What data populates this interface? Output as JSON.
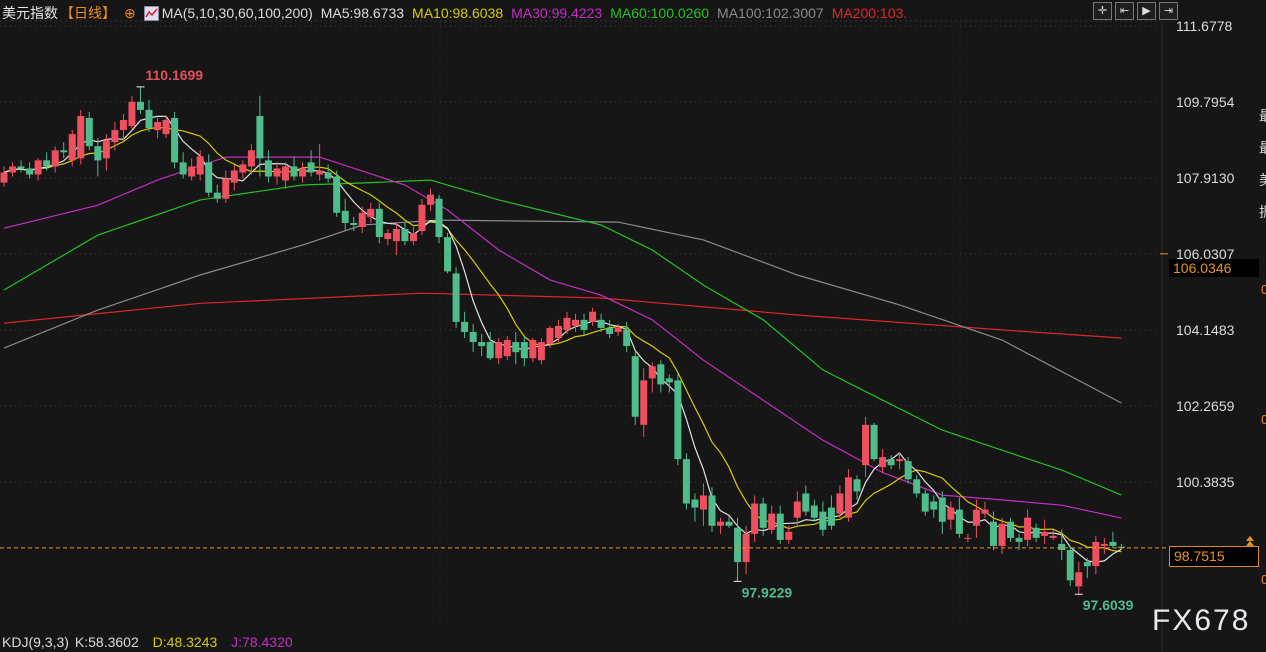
{
  "header": {
    "title": "美元指数",
    "period": "【日线】",
    "period_icon": "crosshair-circle-icon",
    "ma_icon": "chart-indicator-icon",
    "ma_params": "MA(5,10,30,60,100,200)",
    "ma5": "MA5:98.6733",
    "ma10": "MA10:98.6038",
    "ma30": "MA30:99.4223",
    "ma60": "MA60:100.0260",
    "ma100": "MA100:102.3007",
    "ma200": "MA200:103."
  },
  "toolbar": [
    {
      "icon": "crosshair-icon",
      "glyph": "✛"
    },
    {
      "icon": "fit-range-icon",
      "glyph": "⇤"
    },
    {
      "icon": "play-forward-icon",
      "glyph": "▶"
    },
    {
      "icon": "exit-icon",
      "glyph": "⇥"
    }
  ],
  "kdj": {
    "params": "KDJ(9,3,3)",
    "k": "K:58.3602",
    "d": "D:48.3243",
    "j": "J:78.4320"
  },
  "side_panel": {
    "chars": [
      "最",
      "最",
      "美",
      "振"
    ],
    "zeros": [
      "0",
      "0",
      "0"
    ]
  },
  "watermark": "FX678",
  "colors": {
    "background": "#161616",
    "up": "#ef4f5f",
    "down": "#4fbc8c",
    "ma5": "#e0e0e0",
    "ma10": "#d6cc00",
    "ma30": "#c62cc6",
    "ma60": "#22c322",
    "ma100": "#8a8a8a",
    "ma200": "#e02626",
    "current_price": "#e8961e"
  },
  "chart_data": {
    "type": "candlestick",
    "title": "美元指数",
    "yaxis_ticks": [
      "111.6778",
      "109.7954",
      "107.9130",
      "106.0307",
      "104.1483",
      "102.2659",
      "100.3835"
    ],
    "ylim": [
      96.9,
      111.6778
    ],
    "grid": true,
    "current_price": 98.7515,
    "current_price_label": "98.7515",
    "highlight_price_label": "106.0346",
    "highlight_price": 106.0346,
    "annotations": [
      {
        "text": "110.1699",
        "candle": 16,
        "price": 110.1699,
        "kind": "high"
      },
      {
        "text": "97.9229",
        "candle": 86,
        "price": 97.9229,
        "kind": "low"
      },
      {
        "text": "97.6039",
        "candle": 126,
        "price": 97.6039,
        "kind": "low"
      }
    ],
    "candles_ohlc": [
      [
        107.8,
        108.2,
        107.7,
        108.05
      ],
      [
        108.05,
        108.3,
        107.95,
        108.2
      ],
      [
        108.2,
        108.35,
        108.05,
        108.15
      ],
      [
        108.15,
        108.3,
        107.9,
        108.0
      ],
      [
        108.0,
        108.4,
        107.85,
        108.35
      ],
      [
        108.35,
        108.55,
        108.1,
        108.2
      ],
      [
        108.2,
        108.7,
        108.05,
        108.6
      ],
      [
        108.6,
        108.8,
        108.4,
        108.55
      ],
      [
        108.35,
        109.1,
        108.2,
        109.0
      ],
      [
        108.4,
        109.6,
        108.25,
        109.45
      ],
      [
        109.4,
        109.55,
        108.6,
        108.7
      ],
      [
        108.7,
        108.9,
        107.95,
        108.35
      ],
      [
        108.4,
        109.0,
        108.1,
        108.85
      ],
      [
        108.8,
        109.3,
        108.6,
        109.1
      ],
      [
        109.1,
        109.5,
        108.8,
        109.35
      ],
      [
        109.2,
        109.95,
        109.1,
        109.8
      ],
      [
        109.8,
        110.17,
        109.5,
        109.6
      ],
      [
        109.6,
        109.85,
        109.05,
        109.15
      ],
      [
        109.1,
        109.4,
        108.9,
        109.3
      ],
      [
        109.0,
        109.45,
        108.9,
        109.35
      ],
      [
        109.4,
        109.55,
        108.15,
        108.3
      ],
      [
        108.3,
        108.55,
        107.9,
        108.0
      ],
      [
        107.95,
        108.4,
        107.85,
        108.2
      ],
      [
        108.0,
        108.6,
        107.85,
        108.45
      ],
      [
        108.3,
        108.5,
        107.45,
        107.55
      ],
      [
        107.55,
        107.75,
        107.3,
        107.4
      ],
      [
        107.4,
        108.1,
        107.3,
        107.9
      ],
      [
        107.8,
        108.25,
        107.6,
        108.1
      ],
      [
        108.05,
        108.35,
        107.9,
        108.25
      ],
      [
        108.2,
        108.75,
        108.0,
        108.6
      ],
      [
        109.45,
        109.95,
        107.95,
        108.4
      ],
      [
        108.35,
        108.6,
        107.8,
        107.95
      ],
      [
        107.95,
        108.3,
        107.75,
        108.15
      ],
      [
        107.85,
        108.3,
        107.65,
        108.2
      ],
      [
        108.2,
        108.45,
        107.85,
        107.95
      ],
      [
        107.95,
        108.3,
        107.8,
        108.15
      ],
      [
        108.3,
        108.6,
        107.95,
        108.05
      ],
      [
        108.0,
        108.75,
        107.85,
        108.1
      ],
      [
        108.05,
        108.25,
        107.8,
        107.9
      ],
      [
        107.95,
        108.1,
        106.95,
        107.05
      ],
      [
        107.1,
        107.4,
        106.6,
        106.8
      ],
      [
        106.8,
        106.95,
        106.6,
        106.75
      ],
      [
        106.7,
        107.2,
        106.55,
        107.05
      ],
      [
        106.95,
        107.3,
        106.8,
        107.15
      ],
      [
        107.15,
        107.3,
        106.3,
        106.45
      ],
      [
        106.4,
        106.65,
        106.25,
        106.55
      ],
      [
        106.35,
        106.8,
        106.0,
        106.65
      ],
      [
        106.65,
        106.8,
        106.25,
        106.35
      ],
      [
        106.35,
        106.7,
        106.25,
        106.55
      ],
      [
        106.6,
        107.4,
        106.5,
        107.25
      ],
      [
        107.25,
        107.65,
        107.1,
        107.5
      ],
      [
        107.4,
        107.5,
        106.3,
        106.45
      ],
      [
        106.45,
        106.55,
        105.55,
        105.6
      ],
      [
        105.55,
        105.7,
        104.2,
        104.35
      ],
      [
        104.35,
        104.6,
        103.95,
        104.1
      ],
      [
        104.1,
        104.3,
        103.6,
        103.85
      ],
      [
        103.85,
        104.05,
        103.5,
        103.75
      ],
      [
        103.85,
        104.1,
        103.4,
        103.45
      ],
      [
        103.45,
        103.95,
        103.3,
        103.85
      ],
      [
        103.5,
        104.0,
        103.4,
        103.9
      ],
      [
        103.85,
        104.1,
        103.3,
        103.6
      ],
      [
        103.85,
        104.0,
        103.25,
        103.45
      ],
      [
        103.45,
        103.95,
        103.35,
        103.9
      ],
      [
        103.4,
        103.95,
        103.3,
        103.85
      ],
      [
        103.8,
        104.25,
        103.7,
        104.2
      ],
      [
        103.95,
        104.4,
        103.85,
        104.25
      ],
      [
        104.15,
        104.6,
        104.05,
        104.45
      ],
      [
        104.25,
        104.55,
        104.1,
        104.4
      ],
      [
        104.4,
        104.55,
        104.0,
        104.15
      ],
      [
        104.35,
        104.7,
        104.25,
        104.6
      ],
      [
        104.4,
        104.55,
        104.1,
        104.2
      ],
      [
        104.2,
        104.4,
        103.95,
        104.05
      ],
      [
        104.1,
        104.3,
        104.0,
        104.2
      ],
      [
        104.15,
        104.35,
        103.6,
        103.75
      ],
      [
        103.5,
        103.6,
        101.8,
        102.0
      ],
      [
        101.8,
        103.2,
        101.5,
        102.9
      ],
      [
        102.95,
        103.35,
        102.6,
        103.25
      ],
      [
        103.3,
        103.4,
        102.6,
        102.8
      ],
      [
        102.95,
        103.05,
        102.6,
        102.85
      ],
      [
        102.9,
        103.1,
        100.8,
        100.95
      ],
      [
        100.95,
        101.1,
        99.7,
        99.85
      ],
      [
        99.95,
        100.1,
        99.4,
        99.75
      ],
      [
        99.7,
        100.35,
        99.3,
        100.05
      ],
      [
        100.05,
        100.25,
        99.15,
        99.3
      ],
      [
        99.3,
        99.5,
        99.1,
        99.4
      ],
      [
        99.4,
        99.55,
        99.25,
        99.3
      ],
      [
        99.25,
        99.5,
        97.92,
        98.4
      ],
      [
        98.4,
        99.3,
        98.1,
        99.1
      ],
      [
        99.1,
        100.05,
        98.9,
        99.85
      ],
      [
        99.85,
        100.0,
        99.05,
        99.25
      ],
      [
        99.2,
        99.8,
        99.1,
        99.6
      ],
      [
        99.6,
        99.8,
        98.85,
        98.95
      ],
      [
        98.95,
        99.3,
        98.85,
        99.15
      ],
      [
        99.5,
        100.15,
        99.3,
        99.9
      ],
      [
        100.1,
        100.3,
        99.55,
        99.65
      ],
      [
        99.8,
        99.95,
        99.4,
        99.5
      ],
      [
        99.65,
        99.9,
        99.05,
        99.2
      ],
      [
        99.75,
        100.05,
        99.2,
        99.3
      ],
      [
        99.6,
        100.3,
        99.5,
        100.1
      ],
      [
        99.5,
        100.7,
        99.4,
        100.5
      ],
      [
        100.45,
        100.55,
        99.95,
        100.15
      ],
      [
        100.8,
        102.0,
        100.5,
        101.8
      ],
      [
        101.8,
        101.85,
        100.9,
        100.95
      ],
      [
        100.75,
        101.2,
        100.6,
        101.0
      ],
      [
        100.95,
        101.05,
        100.7,
        100.8
      ],
      [
        100.9,
        101.1,
        100.7,
        100.95
      ],
      [
        100.9,
        101.0,
        100.35,
        100.45
      ],
      [
        100.45,
        100.55,
        100.0,
        100.1
      ],
      [
        100.1,
        100.2,
        99.55,
        99.65
      ],
      [
        99.9,
        100.05,
        99.5,
        99.7
      ],
      [
        100.0,
        100.15,
        99.1,
        99.4
      ],
      [
        99.45,
        99.9,
        99.2,
        99.75
      ],
      [
        99.7,
        100.0,
        99.0,
        99.1
      ],
      [
        99.0,
        99.1,
        98.9,
        99.0
      ],
      [
        99.3,
        99.95,
        99.0,
        99.7
      ],
      [
        99.6,
        99.9,
        99.5,
        99.7
      ],
      [
        99.4,
        99.65,
        98.7,
        98.8
      ],
      [
        98.8,
        99.5,
        98.6,
        99.35
      ],
      [
        99.4,
        99.5,
        98.9,
        99.0
      ],
      [
        99.0,
        99.1,
        98.7,
        98.9
      ],
      [
        98.95,
        99.7,
        98.8,
        99.5
      ],
      [
        99.25,
        99.35,
        98.9,
        99.0
      ],
      [
        99.05,
        99.45,
        98.85,
        99.15
      ],
      [
        99.0,
        99.2,
        98.95,
        99.05
      ],
      [
        98.85,
        99.2,
        98.45,
        98.7
      ],
      [
        98.7,
        98.8,
        97.8,
        97.95
      ],
      [
        97.8,
        98.4,
        97.6,
        98.15
      ],
      [
        98.4,
        98.5,
        98.0,
        98.3
      ],
      [
        98.3,
        99.05,
        98.1,
        98.9
      ],
      [
        98.8,
        99.0,
        98.6,
        98.85
      ],
      [
        98.9,
        99.15,
        98.75,
        98.8
      ],
      [
        98.78,
        98.85,
        98.72,
        98.75
      ]
    ],
    "moving_averages": {
      "ma5": {
        "period": 5,
        "computed_from_close": true
      },
      "ma10": {
        "period": 10,
        "computed_from_close": true
      },
      "ma30": {
        "points": [
          [
            0,
            106.67
          ],
          [
            11,
            107.24
          ],
          [
            18,
            107.86
          ],
          [
            26,
            108.43
          ],
          [
            37,
            108.43
          ],
          [
            47,
            107.74
          ],
          [
            52,
            107.12
          ],
          [
            58,
            106.13
          ],
          [
            64,
            105.39
          ],
          [
            70,
            105.01
          ],
          [
            76,
            104.4
          ],
          [
            82,
            103.4
          ],
          [
            89,
            102.41
          ],
          [
            96,
            101.42
          ],
          [
            103,
            100.62
          ],
          [
            110,
            100.06
          ],
          [
            117,
            99.94
          ],
          [
            124,
            99.81
          ],
          [
            131,
            99.49
          ]
        ]
      },
      "ma60": {
        "points": [
          [
            0,
            105.14
          ],
          [
            11,
            106.5
          ],
          [
            23,
            107.37
          ],
          [
            35,
            107.74
          ],
          [
            42,
            107.79
          ],
          [
            50,
            107.86
          ],
          [
            58,
            107.37
          ],
          [
            70,
            106.75
          ],
          [
            76,
            106.13
          ],
          [
            82,
            105.26
          ],
          [
            89,
            104.4
          ],
          [
            96,
            103.16
          ],
          [
            103,
            102.41
          ],
          [
            110,
            101.67
          ],
          [
            117,
            101.17
          ],
          [
            124,
            100.68
          ],
          [
            131,
            100.06
          ]
        ]
      },
      "ma100": {
        "points": [
          [
            0,
            103.7
          ],
          [
            11,
            104.64
          ],
          [
            23,
            105.51
          ],
          [
            35,
            106.25
          ],
          [
            42,
            106.75
          ],
          [
            51,
            106.87
          ],
          [
            72,
            106.82
          ],
          [
            82,
            106.38
          ],
          [
            93,
            105.51
          ],
          [
            105,
            104.77
          ],
          [
            117,
            103.9
          ],
          [
            131,
            102.34
          ]
        ]
      },
      "ma200": {
        "points": [
          [
            0,
            104.32
          ],
          [
            23,
            104.81
          ],
          [
            49,
            105.06
          ],
          [
            70,
            104.94
          ],
          [
            93,
            104.52
          ],
          [
            117,
            104.15
          ],
          [
            131,
            103.95
          ]
        ]
      }
    }
  }
}
